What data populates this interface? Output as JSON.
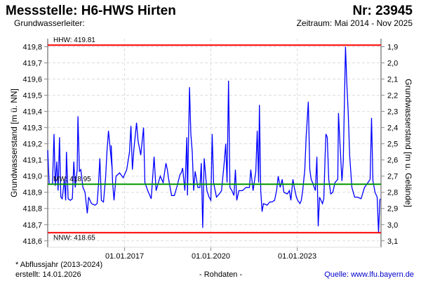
{
  "header": {
    "title": "Messstelle: H6-HWS Hirten",
    "number": "Nr: 23945",
    "aquifer_label": "Grundwasserleiter:",
    "period": "Zeitraum: Mai 2014 - Nov 2025"
  },
  "footer": {
    "note": "* Abflussjahr (2013-2024)",
    "created": "erstellt:  14.01.2026",
    "data_type": "- Rohdaten -",
    "source": "Quelle: www.lfu.bayern.de"
  },
  "chart_data": {
    "type": "line",
    "title": "",
    "ylabel": "Grundwasserstand [m ü. NN]",
    "y2label": "Grundwasserstand [m u. Gelände]",
    "xlim": [
      "2014-05-01",
      "2025-11-30"
    ],
    "ylim": [
      418.56,
      419.85
    ],
    "y2lim": [
      1.85,
      3.14
    ],
    "grid": true,
    "x_ticks": [
      {
        "date": "2017-01-01",
        "label": "01.01.2017"
      },
      {
        "date": "2020-01-01",
        "label": "01.01.2020"
      },
      {
        "date": "2023-01-01",
        "label": "01.01.2023"
      }
    ],
    "y_ticks": [
      "418,6",
      "418,7",
      "418,8",
      "418,9",
      "419,0",
      "419,1",
      "419,2",
      "419,3",
      "419,4",
      "419,5",
      "419,6",
      "419,7",
      "419,8"
    ],
    "y_tick_values": [
      418.6,
      418.7,
      418.8,
      418.9,
      419.0,
      419.1,
      419.2,
      419.3,
      419.4,
      419.5,
      419.6,
      419.7,
      419.8
    ],
    "y2_ticks": [
      "1,9",
      "2,0",
      "2,1",
      "2,2",
      "2,3",
      "2,4",
      "2,5",
      "2,6",
      "2,7",
      "2,8",
      "2,9",
      "3,0",
      "3,1"
    ],
    "y2_tick_values": [
      1.9,
      2.0,
      2.1,
      2.2,
      2.3,
      2.4,
      2.5,
      2.6,
      2.7,
      2.8,
      2.9,
      3.0,
      3.1
    ],
    "reference_lines": [
      {
        "label": "HHW: 419.81",
        "value": 419.81,
        "color": "#ff0000"
      },
      {
        "label": "MW: 418.95",
        "value": 418.95,
        "color": "#009900"
      },
      {
        "label": "NNW: 418.65",
        "value": 418.65,
        "color": "#ff0000"
      }
    ],
    "series": [
      {
        "color": "#0000ff",
        "points": [
          [
            "2014-05-01",
            419.16
          ],
          [
            "2014-05-20",
            418.95
          ],
          [
            "2014-07-01",
            418.95
          ],
          [
            "2014-07-20",
            419.26
          ],
          [
            "2014-08-05",
            418.94
          ],
          [
            "2014-08-25",
            419.09
          ],
          [
            "2014-09-10",
            418.91
          ],
          [
            "2014-09-28",
            419.24
          ],
          [
            "2014-10-15",
            418.87
          ],
          [
            "2014-11-01",
            418.86
          ],
          [
            "2014-11-28",
            418.98
          ],
          [
            "2014-12-15",
            418.85
          ],
          [
            "2014-12-25",
            419.15
          ],
          [
            "2015-01-15",
            418.86
          ],
          [
            "2015-02-12",
            418.85
          ],
          [
            "2015-03-10",
            418.86
          ],
          [
            "2015-03-28",
            419.09
          ],
          [
            "2015-04-15",
            418.93
          ],
          [
            "2015-05-10",
            419.04
          ],
          [
            "2015-05-20",
            419.37
          ],
          [
            "2015-06-08",
            419.03
          ],
          [
            "2015-06-25",
            419.04
          ],
          [
            "2015-07-22",
            418.93
          ],
          [
            "2015-08-18",
            418.9
          ],
          [
            "2015-09-15",
            418.77
          ],
          [
            "2015-10-02",
            418.87
          ],
          [
            "2015-11-08",
            418.83
          ],
          [
            "2015-12-22",
            418.82
          ],
          [
            "2016-01-18",
            418.83
          ],
          [
            "2016-02-05",
            418.95
          ],
          [
            "2016-02-22",
            419.11
          ],
          [
            "2016-03-12",
            418.85
          ],
          [
            "2016-04-08",
            418.84
          ],
          [
            "2016-05-05",
            418.99
          ],
          [
            "2016-05-22",
            419.15
          ],
          [
            "2016-06-10",
            419.28
          ],
          [
            "2016-07-28",
            419.04
          ],
          [
            "2016-07-15",
            419.19
          ],
          [
            "2016-08-02",
            418.96
          ],
          [
            "2016-08-20",
            418.85
          ],
          [
            "2016-09-15",
            419.0
          ],
          [
            "2016-10-30",
            419.02
          ],
          [
            "2016-12-14",
            418.99
          ],
          [
            "2017-01-28",
            419.04
          ],
          [
            "2017-03-05",
            419.15
          ],
          [
            "2017-03-22",
            419.31
          ],
          [
            "2017-04-10",
            419.04
          ],
          [
            "2017-04-28",
            419.16
          ],
          [
            "2017-06-02",
            419.33
          ],
          [
            "2017-06-20",
            419.22
          ],
          [
            "2017-07-25",
            419.13
          ],
          [
            "2017-08-30",
            419.3
          ],
          [
            "2017-09-16",
            418.96
          ],
          [
            "2017-10-22",
            418.91
          ],
          [
            "2017-12-05",
            418.86
          ],
          [
            "2018-01-10",
            419.12
          ],
          [
            "2018-02-05",
            418.91
          ],
          [
            "2018-03-30",
            419.0
          ],
          [
            "2018-05-05",
            418.96
          ],
          [
            "2018-06-10",
            419.08
          ],
          [
            "2018-06-28",
            419.04
          ],
          [
            "2018-07-15",
            418.98
          ],
          [
            "2018-08-20",
            418.88
          ],
          [
            "2018-09-25",
            418.88
          ],
          [
            "2018-10-30",
            418.94
          ],
          [
            "2018-12-05",
            419.01
          ],
          [
            "2018-12-22",
            419.02
          ],
          [
            "2019-01-08",
            419.05
          ],
          [
            "2019-02-05",
            418.91
          ],
          [
            "2019-03-02",
            419.24
          ],
          [
            "2019-03-10",
            418.88
          ],
          [
            "2019-04-05",
            419.55
          ],
          [
            "2019-04-22",
            419.26
          ],
          [
            "2019-05-10",
            419.15
          ],
          [
            "2019-05-28",
            418.91
          ],
          [
            "2019-06-15",
            419.03
          ],
          [
            "2019-07-20",
            418.93
          ],
          [
            "2019-08-15",
            418.93
          ],
          [
            "2019-09-02",
            419.08
          ],
          [
            "2019-09-20",
            418.68
          ],
          [
            "2019-10-08",
            419.11
          ],
          [
            "2019-11-12",
            418.91
          ],
          [
            "2019-12-10",
            418.87
          ],
          [
            "2020-01-01",
            418.85
          ],
          [
            "2020-01-18",
            419.26
          ],
          [
            "2020-02-05",
            418.96
          ],
          [
            "2020-03-12",
            418.87
          ],
          [
            "2020-04-18",
            418.89
          ],
          [
            "2020-05-15",
            418.91
          ],
          [
            "2020-06-20",
            419.09
          ],
          [
            "2020-07-08",
            419.2
          ],
          [
            "2020-07-25",
            418.96
          ],
          [
            "2020-08-12",
            419.59
          ],
          [
            "2020-08-30",
            418.93
          ],
          [
            "2020-09-25",
            418.91
          ],
          [
            "2020-10-20",
            418.88
          ],
          [
            "2020-11-08",
            419.04
          ],
          [
            "2020-11-25",
            418.85
          ],
          [
            "2020-12-22",
            418.91
          ],
          [
            "2021-02-05",
            418.91
          ],
          [
            "2021-03-22",
            418.93
          ],
          [
            "2021-05-05",
            418.93
          ],
          [
            "2021-05-22",
            419.04
          ],
          [
            "2021-06-20",
            418.91
          ],
          [
            "2021-07-25",
            419.03
          ],
          [
            "2021-08-12",
            419.28
          ],
          [
            "2021-08-30",
            418.96
          ],
          [
            "2021-09-08",
            419.44
          ],
          [
            "2021-09-25",
            418.91
          ],
          [
            "2021-10-12",
            418.78
          ],
          [
            "2021-10-30",
            418.83
          ],
          [
            "2021-12-15",
            418.82
          ],
          [
            "2022-01-18",
            418.84
          ],
          [
            "2022-02-15",
            418.84
          ],
          [
            "2022-03-20",
            418.85
          ],
          [
            "2022-04-15",
            418.91
          ],
          [
            "2022-05-05",
            419.0
          ],
          [
            "2022-05-12",
            418.98
          ],
          [
            "2022-05-30",
            418.93
          ],
          [
            "2022-06-25",
            418.98
          ],
          [
            "2022-07-15",
            418.9
          ],
          [
            "2022-08-28",
            418.89
          ],
          [
            "2022-09-25",
            418.91
          ],
          [
            "2022-10-12",
            418.85
          ],
          [
            "2022-11-08",
            418.98
          ],
          [
            "2022-11-25",
            418.93
          ],
          [
            "2022-12-22",
            418.87
          ],
          [
            "2023-01-08",
            418.85
          ],
          [
            "2023-02-05",
            418.83
          ],
          [
            "2023-02-22",
            418.85
          ],
          [
            "2023-03-12",
            418.91
          ],
          [
            "2023-04-08",
            419.04
          ],
          [
            "2023-04-25",
            419.24
          ],
          [
            "2023-05-22",
            419.46
          ],
          [
            "2023-06-10",
            419.04
          ],
          [
            "2023-06-28",
            418.98
          ],
          [
            "2023-07-15",
            418.96
          ],
          [
            "2023-08-20",
            418.91
          ],
          [
            "2023-09-08",
            419.12
          ],
          [
            "2023-09-25",
            418.69
          ],
          [
            "2023-10-12",
            418.87
          ],
          [
            "2023-11-18",
            418.83
          ],
          [
            "2023-12-05",
            418.86
          ],
          [
            "2023-12-22",
            419.13
          ],
          [
            "2024-01-01",
            419.26
          ],
          [
            "2024-01-18",
            419.24
          ],
          [
            "2024-02-05",
            418.98
          ],
          [
            "2024-03-02",
            418.89
          ],
          [
            "2024-03-28",
            418.9
          ],
          [
            "2024-04-25",
            418.96
          ],
          [
            "2024-05-30",
            418.98
          ],
          [
            "2024-06-08",
            419.39
          ],
          [
            "2024-06-25",
            419.22
          ],
          [
            "2024-07-22",
            418.97
          ],
          [
            "2024-08-08",
            419.09
          ],
          [
            "2024-09-05",
            419.8
          ],
          [
            "2024-09-22",
            419.57
          ],
          [
            "2024-10-10",
            419.39
          ],
          [
            "2024-10-28",
            419.13
          ],
          [
            "2024-11-25",
            418.93
          ],
          [
            "2024-12-30",
            418.87
          ],
          [
            "2025-02-05",
            418.87
          ],
          [
            "2025-03-22",
            418.86
          ],
          [
            "2025-05-05",
            418.93
          ],
          [
            "2025-06-18",
            418.96
          ],
          [
            "2025-07-15",
            418.98
          ],
          [
            "2025-08-02",
            419.36
          ],
          [
            "2025-08-20",
            418.97
          ],
          [
            "2025-09-15",
            418.9
          ],
          [
            "2025-10-12",
            418.87
          ],
          [
            "2025-10-30",
            418.65
          ],
          [
            "2025-11-15",
            418.85
          ],
          [
            "2025-11-22",
            418.86
          ]
        ]
      }
    ]
  }
}
